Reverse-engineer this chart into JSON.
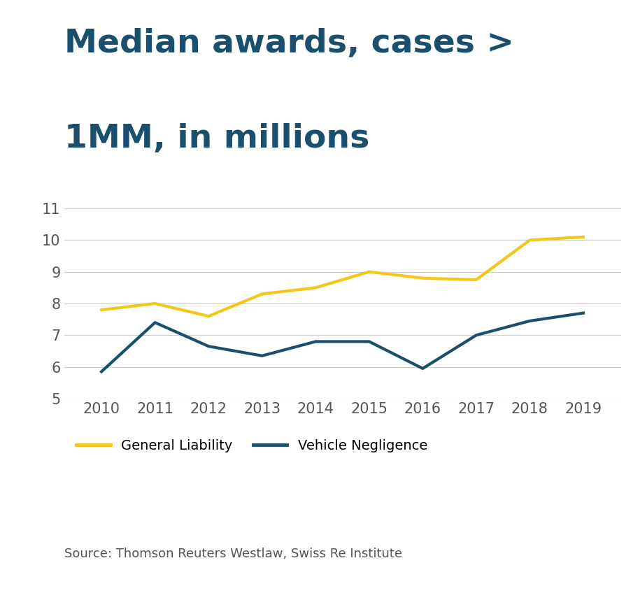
{
  "title_line1": "Median awards, cases >",
  "title_line2": "1MM, in millions",
  "title_color": "#1a4f6e",
  "title_fontsize": 34,
  "title_fontweight": "bold",
  "years": [
    2010,
    2011,
    2012,
    2013,
    2014,
    2015,
    2016,
    2017,
    2018,
    2019
  ],
  "general_liability": [
    7.8,
    8.0,
    7.6,
    8.3,
    8.5,
    9.0,
    8.8,
    8.75,
    10.0,
    10.1
  ],
  "vehicle_negligence": [
    5.85,
    7.4,
    6.65,
    6.35,
    6.8,
    6.8,
    5.95,
    7.0,
    7.45,
    7.7
  ],
  "gl_color": "#f5c518",
  "vn_color": "#1a4f6e",
  "line_width": 3.0,
  "ylim": [
    5,
    11
  ],
  "yticks": [
    5,
    6,
    7,
    8,
    9,
    10,
    11
  ],
  "grid_color": "#cccccc",
  "background_color": "#ffffff",
  "source_text": "Source: Thomson Reuters Westlaw, Swiss Re Institute",
  "source_fontsize": 13,
  "legend_gl": "General Liability",
  "legend_vn": "Vehicle Negligence",
  "legend_fontsize": 14,
  "tick_fontsize": 15,
  "tick_color": "#555555"
}
